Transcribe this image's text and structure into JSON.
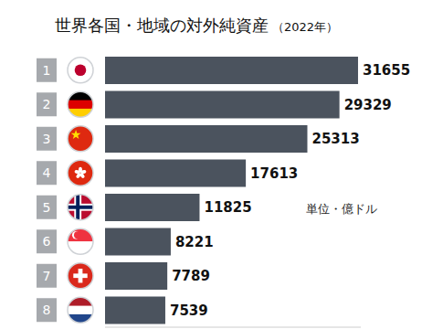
{
  "chart_data": {
    "type": "bar",
    "title": "世界各国・地域の対外純資産",
    "subtitle": "（2022年）",
    "annotations": [
      "単位・億ドル"
    ],
    "orientation": "horizontal",
    "categories": [
      "1",
      "2",
      "3",
      "4",
      "5",
      "6",
      "7",
      "8"
    ],
    "values": [
      31655,
      29329,
      25313,
      17613,
      11825,
      8221,
      7789,
      7539
    ],
    "color": "#4b535e",
    "xlim": [
      0,
      32000
    ],
    "data_labels": true,
    "tick_labels": "y",
    "grid": false
  }
}
